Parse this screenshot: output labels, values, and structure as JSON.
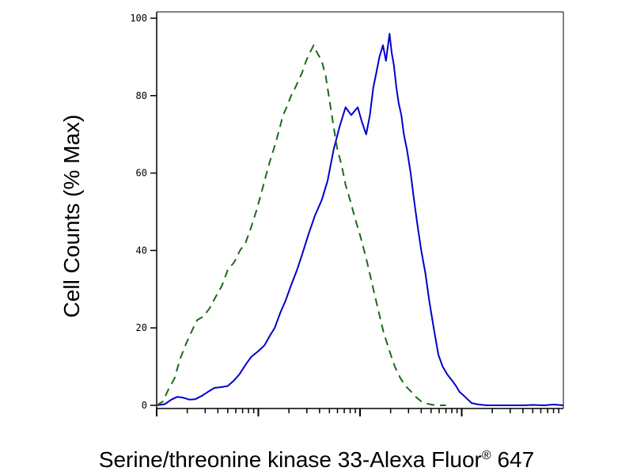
{
  "chart_data": {
    "type": "line",
    "title": "",
    "xlabel": "Serine/threonine kinase 33-Alexa Fluor",
    "xlabel_sup": "®",
    "xlabel_suffix": " 647",
    "ylabel": "Cell Counts (% Max)",
    "x_scale": "log",
    "xlim": [
      1,
      10000
    ],
    "ylim": [
      0,
      100
    ],
    "y_ticks": [
      0,
      20,
      40,
      60,
      80,
      100
    ],
    "y_tick_labels": [
      "0",
      "20",
      "40",
      "60",
      "80",
      "100"
    ],
    "grid": false,
    "legend": "none",
    "series": [
      {
        "color": "#0000cc",
        "style": "solid",
        "x": [
          1,
          1.2,
          1.4,
          1.6,
          1.8,
          2.1,
          2.4,
          2.8,
          3.2,
          3.7,
          4.3,
          5.0,
          5.8,
          6.5,
          7.5,
          8.5,
          10,
          11.5,
          13,
          14.5,
          16.5,
          18.5,
          21,
          24,
          27,
          31,
          36,
          42,
          48,
          55,
          63,
          72,
          82,
          95,
          105,
          115,
          125,
          135,
          145,
          155,
          168,
          180,
          195,
          205,
          215,
          228,
          240,
          255,
          270,
          290,
          315,
          340,
          370,
          400,
          440,
          480,
          530,
          590,
          650,
          720,
          800,
          880,
          950,
          1050,
          1150,
          1250,
          1400,
          1600,
          1800,
          2000,
          2500,
          3000,
          4000,
          5000,
          6500,
          8000,
          10000
        ],
        "y": [
          0,
          0.3,
          1.5,
          2.2,
          2,
          1.5,
          1.6,
          2.5,
          3.5,
          4.5,
          4.7,
          5,
          6.5,
          8,
          10.5,
          12.5,
          14,
          15.5,
          18,
          20,
          24,
          27,
          31,
          35,
          39,
          44,
          49,
          53,
          58,
          66,
          72,
          77,
          75,
          77,
          73,
          70,
          75,
          82,
          86,
          90,
          93,
          89,
          96,
          91,
          88,
          82,
          78,
          75,
          70,
          66,
          60,
          53,
          46,
          40,
          34,
          27,
          20,
          13,
          10,
          8,
          6.5,
          5,
          3.5,
          2.5,
          1.5,
          0.6,
          0.3,
          0.1,
          0,
          0,
          0,
          0,
          0,
          0.1,
          0,
          0.2,
          0
        ]
      },
      {
        "color": "#1a6b1a",
        "style": "dashed",
        "x": [
          1,
          1.15,
          1.3,
          1.5,
          1.7,
          1.95,
          2.2,
          2.5,
          2.9,
          3.3,
          3.8,
          4.4,
          5.0,
          5.8,
          6.6,
          7.5,
          8.5,
          9.5,
          10.5,
          11.5,
          13,
          14.5,
          16,
          17.5,
          19,
          21,
          23,
          25,
          27,
          29.5,
          32,
          35,
          38,
          42,
          46,
          50,
          55,
          60,
          66,
          72,
          80,
          90,
          100,
          115,
          130,
          150,
          170,
          195,
          220,
          250,
          280,
          320,
          360,
          400,
          450,
          500,
          560,
          620,
          700
        ],
        "y": [
          0,
          1,
          4,
          7,
          12,
          16,
          19,
          22,
          23,
          25,
          28,
          31,
          35,
          37,
          40,
          42,
          46,
          50,
          54,
          58,
          63,
          67,
          71,
          75,
          77,
          80,
          82,
          84,
          86,
          89,
          91,
          93,
          91,
          89,
          85,
          79,
          72,
          66,
          62,
          57,
          53,
          48,
          44,
          38,
          32,
          25,
          19,
          14,
          10,
          7,
          5,
          3.5,
          2,
          1,
          0.5,
          0.2,
          0,
          0,
          0
        ]
      }
    ]
  }
}
